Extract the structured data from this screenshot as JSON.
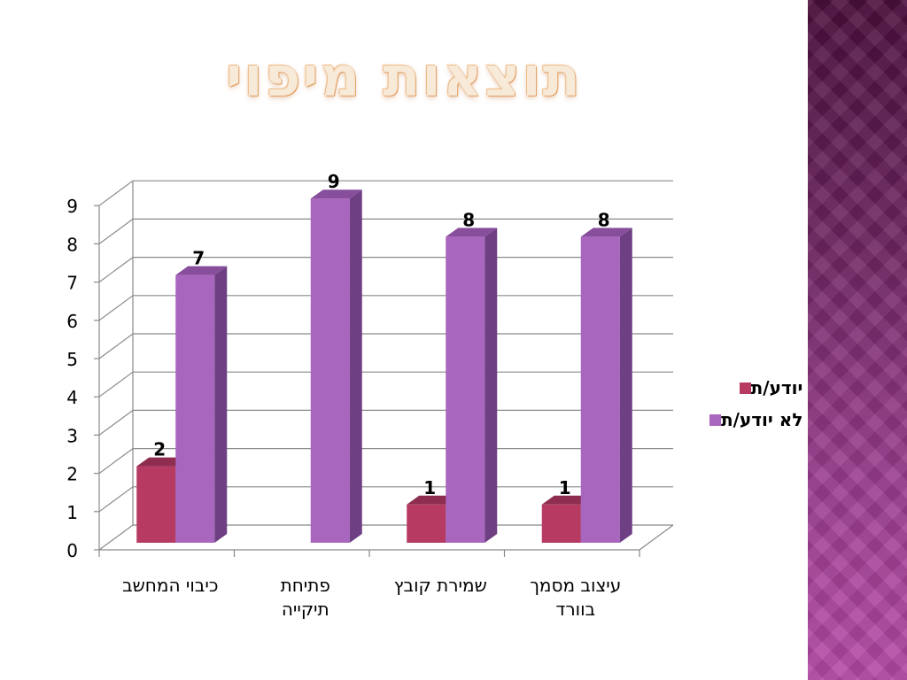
{
  "title": "תוצאות מיפוי",
  "colors": {
    "series1": "#b63a62",
    "series1_side": "#862a49",
    "series1_top": "#8e2d4f",
    "series2": "#a966be",
    "series2_side": "#6f3f83",
    "series2_top": "#874e9c",
    "grid": "#8a8a8a"
  },
  "chart_data": {
    "type": "bar",
    "categories": [
      [
        "כיבוי המחשב"
      ],
      [
        "פתיחת",
        "תיקייה"
      ],
      [
        "שמירת קובץ"
      ],
      [
        "עיצוב מסמך",
        "בוורד"
      ]
    ],
    "series": [
      {
        "name": "יודע/ת",
        "values": [
          2,
          0,
          1,
          1
        ],
        "labels": [
          "2",
          "",
          "1",
          "1"
        ]
      },
      {
        "name": "לא יודע/ת",
        "values": [
          7,
          9,
          8,
          8
        ],
        "labels": [
          "7",
          "9",
          "8",
          "8"
        ]
      }
    ],
    "ylim": [
      0,
      9
    ],
    "yticks": [
      "0",
      "1",
      "2",
      "3",
      "4",
      "5",
      "6",
      "7",
      "8",
      "9"
    ],
    "grid": true,
    "legend": "right"
  }
}
